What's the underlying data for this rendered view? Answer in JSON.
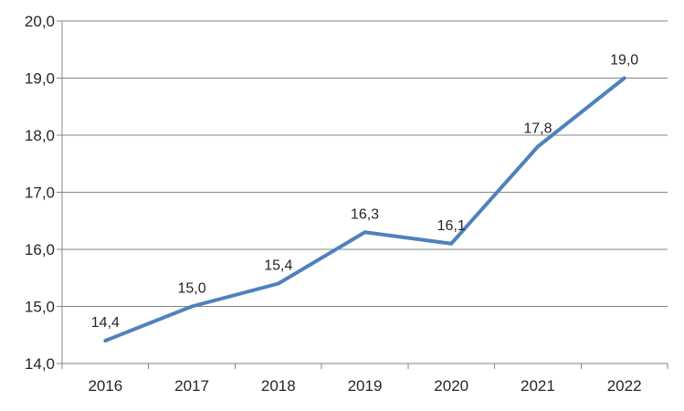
{
  "chart_data": {
    "type": "line",
    "title": "",
    "xlabel": "",
    "ylabel": "",
    "categories": [
      "2016",
      "2017",
      "2018",
      "2019",
      "2020",
      "2021",
      "2022"
    ],
    "values": [
      14.4,
      15.0,
      15.4,
      16.3,
      16.1,
      17.8,
      19.0
    ],
    "data_labels": [
      "14,4",
      "15,0",
      "15,4",
      "16,3",
      "16,1",
      "17,8",
      "19,0"
    ],
    "ylim": [
      14.0,
      20.0
    ],
    "y_tick_step": 1.0,
    "y_tick_labels": [
      "14,0",
      "15,0",
      "16,0",
      "17,0",
      "18,0",
      "19,0",
      "20,0"
    ],
    "grid": true,
    "legend_position": "none",
    "decimal_separator": ",",
    "colors": {
      "line": "#4F81BD",
      "grid": "#848484",
      "axis": "#848484",
      "text": "#262626",
      "background": "#FFFFFF"
    }
  }
}
